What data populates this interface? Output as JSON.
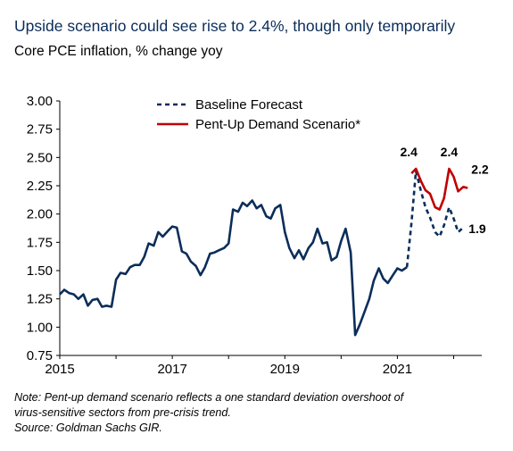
{
  "header": {
    "title": "Upside scenario could see rise to 2.4%, though only temporarily",
    "subtitle": "Core PCE inflation, % change yoy"
  },
  "footnote": {
    "note_line1": "Note: Pent-up demand scenario reflects a one standard deviation overshoot of",
    "note_line2": "virus-sensitive sectors from pre-crisis trend.",
    "source": "Source: Goldman Sachs GIR."
  },
  "chart_data": {
    "type": "line",
    "title": "Upside scenario could see rise to 2.4%, though only temporarily",
    "subtitle": "Core PCE inflation, % change yoy",
    "xlabel": "",
    "ylabel": "",
    "xlim": [
      2015.0,
      2022.5
    ],
    "ylim": [
      0.75,
      3.0
    ],
    "x_ticks": [
      2015,
      2017,
      2019,
      2021
    ],
    "x_tick_labels": [
      "2015",
      "2017",
      "2019",
      "2021"
    ],
    "y_ticks": [
      0.75,
      1.0,
      1.25,
      1.5,
      1.75,
      2.0,
      2.25,
      2.5,
      2.75,
      3.0
    ],
    "y_tick_labels": [
      "0.75",
      "1.00",
      "1.25",
      "1.50",
      "1.75",
      "2.00",
      "2.25",
      "2.50",
      "2.75",
      "3.00"
    ],
    "grid": false,
    "legend": {
      "position": "top-center"
    },
    "colors": {
      "actual": "#0b2d5a",
      "baseline": "#0b2d5a",
      "pentup": "#c00000"
    },
    "series": [
      {
        "name": "",
        "role": "actual",
        "style": "solid",
        "x": [
          2015.0,
          2015.08,
          2015.17,
          2015.25,
          2015.33,
          2015.42,
          2015.5,
          2015.58,
          2015.67,
          2015.75,
          2015.83,
          2015.92,
          2016.0,
          2016.08,
          2016.17,
          2016.25,
          2016.33,
          2016.42,
          2016.5,
          2016.58,
          2016.67,
          2016.75,
          2016.83,
          2016.92,
          2017.0,
          2017.08,
          2017.17,
          2017.25,
          2017.33,
          2017.42,
          2017.5,
          2017.58,
          2017.67,
          2017.75,
          2017.83,
          2017.92,
          2018.0,
          2018.08,
          2018.17,
          2018.25,
          2018.33,
          2018.42,
          2018.5,
          2018.58,
          2018.67,
          2018.75,
          2018.83,
          2018.92,
          2019.0,
          2019.08,
          2019.17,
          2019.25,
          2019.33,
          2019.42,
          2019.5,
          2019.58,
          2019.67,
          2019.75,
          2019.83,
          2019.92,
          2020.0,
          2020.08,
          2020.17,
          2020.25,
          2020.33,
          2020.42,
          2020.5,
          2020.58,
          2020.67,
          2020.75,
          2020.83,
          2020.92,
          2021.0,
          2021.08,
          2021.17
        ],
        "y": [
          1.29,
          1.33,
          1.3,
          1.29,
          1.25,
          1.29,
          1.19,
          1.24,
          1.25,
          1.18,
          1.19,
          1.18,
          1.42,
          1.48,
          1.47,
          1.53,
          1.55,
          1.55,
          1.62,
          1.74,
          1.72,
          1.84,
          1.8,
          1.85,
          1.89,
          1.88,
          1.67,
          1.65,
          1.58,
          1.54,
          1.46,
          1.53,
          1.65,
          1.66,
          1.68,
          1.7,
          1.74,
          2.04,
          2.02,
          2.1,
          2.07,
          2.12,
          2.05,
          2.08,
          1.98,
          1.96,
          2.05,
          2.08,
          1.84,
          1.7,
          1.61,
          1.68,
          1.6,
          1.7,
          1.75,
          1.87,
          1.74,
          1.75,
          1.59,
          1.62,
          1.76,
          1.87,
          1.66,
          0.93,
          1.02,
          1.14,
          1.25,
          1.41,
          1.52,
          1.43,
          1.39,
          1.46,
          1.52,
          1.5,
          1.53
        ]
      },
      {
        "name": "Baseline Forecast",
        "role": "baseline",
        "style": "dashed",
        "x": [
          2021.17,
          2021.25,
          2021.33,
          2021.42,
          2021.5,
          2021.58,
          2021.67,
          2021.75,
          2021.83,
          2021.92,
          2022.0,
          2022.08,
          2022.17
        ],
        "y": [
          1.53,
          1.92,
          2.38,
          2.2,
          2.06,
          1.97,
          1.84,
          1.8,
          1.9,
          2.06,
          1.96,
          1.84,
          1.88
        ]
      },
      {
        "name": "Pent-Up Demand Scenario*",
        "role": "pentup",
        "style": "solid",
        "x": [
          2021.25,
          2021.33,
          2021.42,
          2021.5,
          2021.58,
          2021.67,
          2021.75,
          2021.83,
          2021.92,
          2022.0,
          2022.08,
          2022.17,
          2022.25
        ],
        "y": [
          2.36,
          2.4,
          2.29,
          2.21,
          2.18,
          2.06,
          2.04,
          2.14,
          2.4,
          2.33,
          2.2,
          2.24,
          2.23
        ]
      }
    ],
    "annotations": [
      {
        "text": "2.4",
        "x": 2021.33,
        "y": 2.4
      },
      {
        "text": "2.4",
        "x": 2021.92,
        "y": 2.4
      },
      {
        "text": "2.2",
        "x": 2022.25,
        "y": 2.23
      },
      {
        "text": "1.9",
        "x": 2022.17,
        "y": 1.88
      }
    ]
  }
}
